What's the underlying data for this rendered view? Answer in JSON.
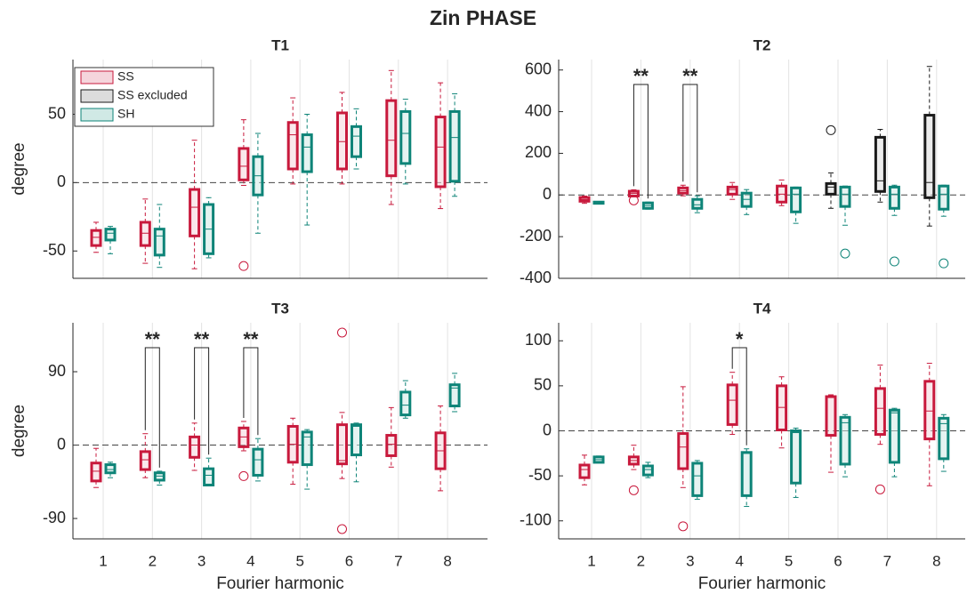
{
  "title": "Zin PHASE",
  "chart_data": [
    {
      "type": "box",
      "title": "T1",
      "ylabel": "degree",
      "categories": [
        null,
        null,
        null,
        null,
        null,
        null,
        null,
        null
      ],
      "ylim": [
        -70,
        90
      ],
      "yticks": [
        -50,
        0,
        50
      ],
      "reference_line": 0,
      "legend": {
        "location": "northwest",
        "entries": [
          {
            "name": "SS",
            "color": "#c8193c",
            "fill": "#f5d5dc"
          },
          {
            "name": "SS excluded",
            "color": "#1a1a1a",
            "fill": "#dcdcdc"
          },
          {
            "name": "SH",
            "color": "#0e8478",
            "fill": "#d0e9e5"
          }
        ]
      },
      "series": [
        {
          "color": "#c8193c",
          "fill": "#f5d5dc",
          "values": [
            {
              "low": -51,
              "q1": -46,
              "median": -40,
              "q3": -35,
              "high": -29,
              "outliers": []
            },
            {
              "low": -59,
              "q1": -46,
              "median": -37,
              "q3": -29,
              "high": -12,
              "outliers": []
            },
            {
              "low": -63,
              "q1": -39,
              "median": -18,
              "q3": -5,
              "high": 31,
              "outliers": []
            },
            {
              "low": -2,
              "q1": 2,
              "median": 12,
              "q3": 25,
              "high": 46,
              "outliers": [
                -61
              ]
            },
            {
              "low": -1,
              "q1": 10,
              "median": 35,
              "q3": 44,
              "high": 62,
              "outliers": []
            },
            {
              "low": -1,
              "q1": 10,
              "median": 30,
              "q3": 51,
              "high": 66,
              "outliers": []
            },
            {
              "low": -16,
              "q1": 5,
              "median": 31,
              "q3": 60,
              "high": 82,
              "outliers": []
            },
            {
              "low": -19,
              "q1": -3,
              "median": 26,
              "q3": 48,
              "high": 73,
              "outliers": []
            }
          ]
        },
        {
          "color": "#0e8478",
          "fill": "#d0e9e5",
          "values": [
            {
              "low": -52,
              "q1": -42,
              "median": -37,
              "q3": -34,
              "high": -32,
              "outliers": []
            },
            {
              "low": -62,
              "q1": -53,
              "median": -39,
              "q3": -34,
              "high": -16,
              "outliers": []
            },
            {
              "low": -55,
              "q1": -52,
              "median": -34,
              "q3": -16,
              "high": -11,
              "outliers": []
            },
            {
              "low": -37,
              "q1": -9,
              "median": 5,
              "q3": 19,
              "high": 36,
              "outliers": []
            },
            {
              "low": -31,
              "q1": 8,
              "median": 26,
              "q3": 35,
              "high": 50,
              "outliers": []
            },
            {
              "low": 10,
              "q1": 19,
              "median": 34,
              "q3": 41,
              "high": 54,
              "outliers": []
            },
            {
              "low": -1,
              "q1": 14,
              "median": 36,
              "q3": 52,
              "high": 61,
              "outliers": []
            },
            {
              "low": -10,
              "q1": 1,
              "median": 33,
              "q3": 52,
              "high": 65,
              "outliers": []
            }
          ]
        }
      ],
      "significance": []
    },
    {
      "type": "box",
      "title": "T2",
      "categories": [
        null,
        null,
        null,
        null,
        null,
        null,
        null,
        null
      ],
      "ylim": [
        -400,
        650
      ],
      "yticks": [
        -400,
        -200,
        0,
        200,
        400,
        600
      ],
      "reference_line": 0,
      "series": [
        {
          "color": "#c8193c",
          "fill": "#f5d5dc",
          "values": [
            {
              "low": -40,
              "q1": -30,
              "median": -22,
              "q3": -12,
              "high": -5,
              "outliers": []
            },
            {
              "low": -8,
              "q1": -5,
              "median": 8,
              "q3": 18,
              "high": 25,
              "outliers": [
                -26
              ]
            },
            {
              "low": -4,
              "q1": 9,
              "median": 21,
              "q3": 34,
              "high": 47,
              "outliers": []
            },
            {
              "low": -21,
              "q1": 4,
              "median": 26,
              "q3": 38,
              "high": 60,
              "outliers": []
            },
            {
              "low": -51,
              "q1": -34,
              "median": 4,
              "q3": 43,
              "high": 72,
              "outliers": []
            },
            null,
            null,
            null
          ]
        },
        {
          "color": "#1a1a1a",
          "fill": "#dcdcdc",
          "values": [
            null,
            null,
            null,
            null,
            null,
            {
              "low": -64,
              "q1": 4,
              "median": 38,
              "q3": 55,
              "high": 106,
              "outliers": [
                311
              ]
            },
            {
              "low": -34,
              "q1": 17,
              "median": 68,
              "q3": 277,
              "high": 315,
              "outliers": []
            },
            {
              "low": -149,
              "q1": -13,
              "median": 60,
              "q3": 383,
              "high": 617,
              "outliers": []
            }
          ]
        },
        {
          "color": "#0e8478",
          "fill": "#d0e9e5",
          "values": [
            {
              "low": -42,
              "q1": -40,
              "median": -37,
              "q3": -34,
              "high": -32,
              "outliers": []
            },
            {
              "low": -68,
              "q1": -64,
              "median": -51,
              "q3": -38,
              "high": -34,
              "outliers": []
            },
            {
              "low": -85,
              "q1": -64,
              "median": -47,
              "q3": -21,
              "high": -4,
              "outliers": []
            },
            {
              "low": -94,
              "q1": -55,
              "median": -21,
              "q3": 9,
              "high": 26,
              "outliers": []
            },
            {
              "low": -136,
              "q1": -81,
              "median": 4,
              "q3": 34,
              "high": 38,
              "outliers": []
            },
            {
              "low": -145,
              "q1": -55,
              "median": 4,
              "q3": 38,
              "high": 43,
              "outliers": [
                -281
              ]
            },
            {
              "low": -98,
              "q1": -64,
              "median": 4,
              "q3": 38,
              "high": 47,
              "outliers": [
                -319
              ]
            },
            {
              "low": -102,
              "q1": -68,
              "median": 4,
              "q3": 43,
              "high": 47,
              "outliers": [
                -328
              ]
            }
          ]
        }
      ],
      "significance": [
        {
          "x": 2,
          "label": "**"
        },
        {
          "x": 3,
          "label": "**"
        }
      ]
    },
    {
      "type": "box",
      "title": "T3",
      "ylabel": "degree",
      "xlabel": "Fourier harmonic",
      "categories": [
        "1",
        "2",
        "3",
        "4",
        "5",
        "6",
        "7",
        "8"
      ],
      "ylim": [
        -115,
        150
      ],
      "yticks": [
        -90,
        0,
        90
      ],
      "reference_line": 0,
      "series": [
        {
          "color": "#c8193c",
          "fill": "#f5d5dc",
          "values": [
            {
              "low": -52,
              "q1": -44,
              "median": -32,
              "q3": -22,
              "high": -4,
              "outliers": []
            },
            {
              "low": -40,
              "q1": -30,
              "median": -18,
              "q3": -8,
              "high": 14,
              "outliers": []
            },
            {
              "low": -31,
              "q1": -15,
              "median": 0,
              "q3": 10,
              "high": 27,
              "outliers": []
            },
            {
              "low": -7,
              "q1": -2,
              "median": 10,
              "q3": 21,
              "high": 29,
              "outliers": [
                -38
              ]
            },
            {
              "low": -48,
              "q1": -21,
              "median": 1,
              "q3": 23,
              "high": 33,
              "outliers": []
            },
            {
              "low": -41,
              "q1": -23,
              "median": -19,
              "q3": 25,
              "high": 40,
              "outliers": [
                138,
                -103
              ]
            },
            {
              "low": -27,
              "q1": -13,
              "median": 1,
              "q3": 12,
              "high": 46,
              "outliers": []
            },
            {
              "low": -56,
              "q1": -29,
              "median": -7,
              "q3": 15,
              "high": 48,
              "outliers": []
            }
          ]
        },
        {
          "color": "#0e8478",
          "fill": "#d0e9e5",
          "values": [
            {
              "low": -40,
              "q1": -34,
              "median": -30,
              "q3": -24,
              "high": -21,
              "outliers": []
            },
            {
              "low": -49,
              "q1": -43,
              "median": -38,
              "q3": -34,
              "high": -32,
              "outliers": []
            },
            {
              "low": -50,
              "q1": -49,
              "median": -37,
              "q3": -29,
              "high": -16,
              "outliers": []
            },
            {
              "low": -44,
              "q1": -37,
              "median": -18,
              "q3": -5,
              "high": 8,
              "outliers": []
            },
            {
              "low": -54,
              "q1": -24,
              "median": 10,
              "q3": 16,
              "high": 19,
              "outliers": []
            },
            {
              "low": -45,
              "q1": -12,
              "median": 23,
              "q3": 25,
              "high": 27,
              "outliers": []
            },
            {
              "low": 33,
              "q1": 37,
              "median": 49,
              "q3": 65,
              "high": 79,
              "outliers": []
            },
            {
              "low": 41,
              "q1": 48,
              "median": 70,
              "q3": 74,
              "high": 88,
              "outliers": []
            }
          ]
        }
      ],
      "significance": [
        {
          "x": 2,
          "label": "**"
        },
        {
          "x": 3,
          "label": "**"
        },
        {
          "x": 4,
          "label": "**"
        }
      ]
    },
    {
      "type": "box",
      "title": "T4",
      "xlabel": "Fourier harmonic",
      "categories": [
        "1",
        "2",
        "3",
        "4",
        "5",
        "6",
        "7",
        "8"
      ],
      "ylim": [
        -120,
        120
      ],
      "yticks": [
        -100,
        -50,
        0,
        50,
        100
      ],
      "reference_line": 0,
      "series": [
        {
          "color": "#c8193c",
          "fill": "#f5d5dc",
          "values": [
            {
              "low": -60,
              "q1": -52,
              "median": -43,
              "q3": -38,
              "high": -27,
              "outliers": []
            },
            {
              "low": -43,
              "q1": -37,
              "median": -33,
              "q3": -29,
              "high": -16,
              "outliers": [
                -66
              ]
            },
            {
              "low": -63,
              "q1": -42,
              "median": -18,
              "q3": -3,
              "high": 49,
              "outliers": [
                -106
              ]
            },
            {
              "low": -4,
              "q1": 7,
              "median": 34,
              "q3": 51,
              "high": 65,
              "outliers": []
            },
            {
              "low": -19,
              "q1": 1,
              "median": 26,
              "q3": 50,
              "high": 60,
              "outliers": []
            },
            {
              "low": -46,
              "q1": -5,
              "median": 37,
              "q3": 38,
              "high": 40,
              "outliers": []
            },
            {
              "low": -15,
              "q1": -4,
              "median": 25,
              "q3": 47,
              "high": 73,
              "outliers": [
                -65
              ]
            },
            {
              "low": -61,
              "q1": -9,
              "median": 22,
              "q3": 55,
              "high": 75,
              "outliers": []
            }
          ]
        },
        {
          "color": "#0e8478",
          "fill": "#d0e9e5",
          "values": [
            {
              "low": -35,
              "q1": -35,
              "median": -32,
              "q3": -29,
              "high": -28,
              "outliers": []
            },
            {
              "low": -52,
              "q1": -49,
              "median": -43,
              "q3": -39,
              "high": -35,
              "outliers": []
            },
            {
              "low": -76,
              "q1": -72,
              "median": -50,
              "q3": -36,
              "high": -33,
              "outliers": []
            },
            {
              "low": -84,
              "q1": -72,
              "median": -25,
              "q3": -24,
              "high": -20,
              "outliers": []
            },
            {
              "low": -74,
              "q1": -58,
              "median": -2,
              "q3": 0,
              "high": 3,
              "outliers": []
            },
            {
              "low": -51,
              "q1": -37,
              "median": 9,
              "q3": 15,
              "high": 18,
              "outliers": []
            },
            {
              "low": -51,
              "q1": -35,
              "median": 20,
              "q3": 23,
              "high": 25,
              "outliers": []
            },
            {
              "low": -45,
              "q1": -31,
              "median": 8,
              "q3": 14,
              "high": 18,
              "outliers": []
            }
          ]
        }
      ],
      "significance": [
        {
          "x": 4,
          "label": "*"
        }
      ]
    }
  ]
}
